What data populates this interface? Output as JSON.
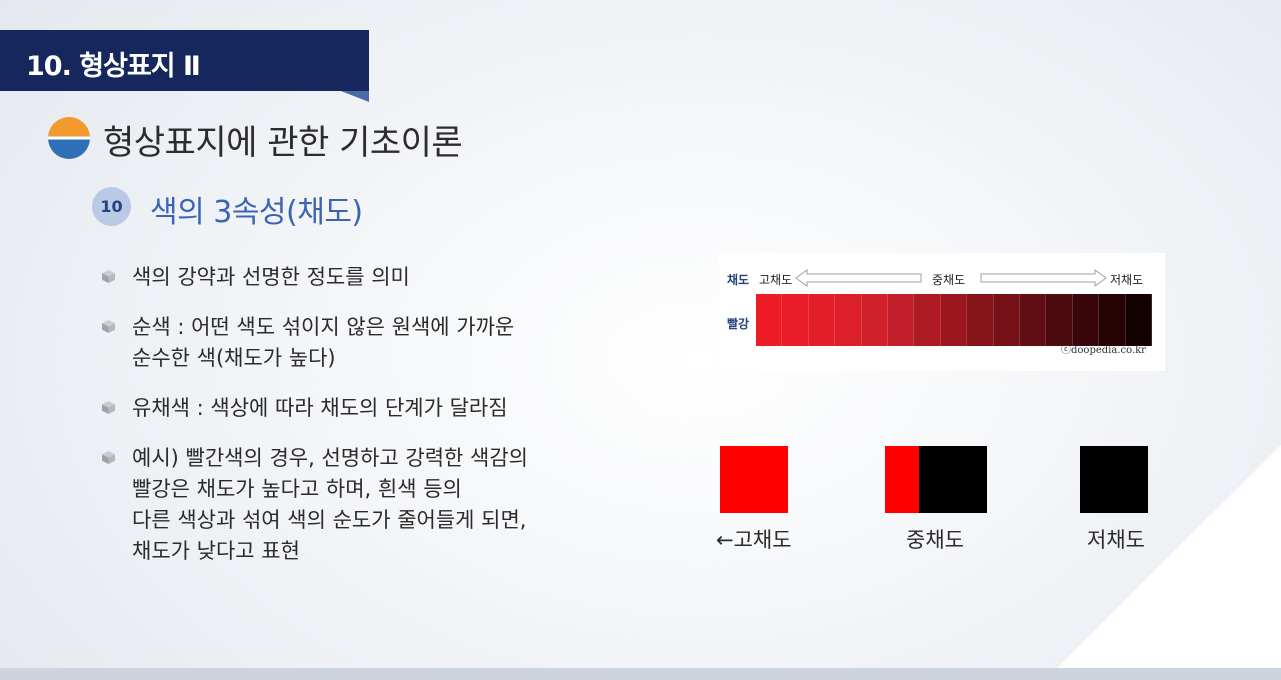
{
  "header": {
    "title": "10. 형상표지 Ⅱ"
  },
  "section": {
    "title": "형상표지에 관한 기초이론",
    "icon": "sunset-icon"
  },
  "subsection": {
    "number": "10",
    "title": "색의 3속성(채도)"
  },
  "bullets": [
    {
      "lines": [
        "색의 강약과 선명한 정도를 의미"
      ]
    },
    {
      "lines": [
        "순색 : 어떤 색도 섞이지 않은 원색에 가까운",
        "순수한 색(채도가 높다)"
      ]
    },
    {
      "lines": [
        "유채색 : 색상에 따라 채도의 단계가 달라짐"
      ]
    },
    {
      "lines": [
        "예시) 빨간색의 경우, 선명하고 강력한 색감의",
        "빨강은 채도가 높다고 하며, 흰색 등의",
        "다른 색상과 섞여 색의 순도가 줄어들게 되면,",
        "채도가 낮다고 표현"
      ]
    }
  ],
  "scale": {
    "row_label": "채도",
    "color_label": "빨강",
    "high": "고채도",
    "mid": "중채도",
    "low": "저채도",
    "credit": "ⓒdoopedia.co.kr",
    "steps": [
      "#ee1c25",
      "#e81d27",
      "#e21f29",
      "#dc202b",
      "#d0202a",
      "#c01e28",
      "#ae1b24",
      "#9b1720",
      "#88141b",
      "#741117",
      "#600e13",
      "#4c0b0f",
      "#390709",
      "#260406",
      "#140203"
    ]
  },
  "examples": [
    {
      "label": "←고채도",
      "colors": [
        "#ff0000"
      ],
      "ratios": [
        1
      ]
    },
    {
      "label": "중채도",
      "colors": [
        "#ff0000",
        "#000000"
      ],
      "ratios": [
        0.33,
        0.67
      ]
    },
    {
      "label": "저채도",
      "colors": [
        "#000000"
      ],
      "ratios": [
        1
      ]
    }
  ],
  "colors": {
    "header_bg": "#15275c",
    "accent_blue": "#3b65b3",
    "badge_bg": "#b9c9e6"
  }
}
